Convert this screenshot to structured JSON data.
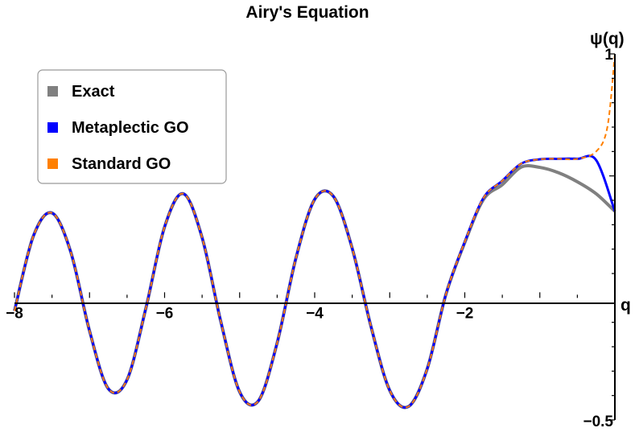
{
  "chart_data": {
    "type": "line",
    "title": "Airy's Equation",
    "xlabel": "q",
    "ylabel": "ψ(q)",
    "xlim": [
      -8,
      0
    ],
    "ylim": [
      -0.5,
      1
    ],
    "x_ticks": [
      {
        "value": -8,
        "label": "−8"
      },
      {
        "value": -6,
        "label": "−6"
      },
      {
        "value": -4,
        "label": "−4"
      },
      {
        "value": -2,
        "label": "−2"
      }
    ],
    "y_ticks": [
      {
        "value": -0.5,
        "label": "−0.5"
      },
      {
        "value": 1,
        "label": "1"
      }
    ],
    "legend_position": "top-left",
    "grid": false,
    "series": [
      {
        "name": "Exact",
        "color": "#808080",
        "style": "solid",
        "x": [
          -8,
          -7.75,
          -7.5,
          -7.25,
          -7,
          -6.75,
          -6.5,
          -6.25,
          -6,
          -5.75,
          -5.5,
          -5.25,
          -5,
          -4.75,
          -4.5,
          -4.25,
          -4,
          -3.75,
          -3.5,
          -3.25,
          -3,
          -2.75,
          -2.5,
          -2.25,
          -2,
          -1.75,
          -1.5,
          -1.25,
          -1,
          -0.75,
          -0.5,
          -0.25,
          0
        ],
        "values": [
          -0.053,
          0.252,
          0.348,
          0.188,
          -0.135,
          -0.372,
          -0.335,
          -0.043,
          0.291,
          0.427,
          0.247,
          -0.098,
          -0.385,
          -0.422,
          -0.184,
          0.163,
          0.404,
          0.416,
          0.203,
          -0.117,
          -0.379,
          -0.445,
          -0.29,
          0.016,
          0.227,
          0.404,
          0.464,
          0.536,
          0.535,
          0.513,
          0.476,
          0.427,
          0.355
        ]
      },
      {
        "name": "Metaplectic GO",
        "color": "#0000ff",
        "style": "solid",
        "x": [
          -8,
          -7.75,
          -7.5,
          -7.25,
          -7,
          -6.75,
          -6.5,
          -6.25,
          -6,
          -5.75,
          -5.5,
          -5.25,
          -5,
          -4.75,
          -4.5,
          -4.25,
          -4,
          -3.75,
          -3.5,
          -3.25,
          -3,
          -2.75,
          -2.5,
          -2.25,
          -2,
          -1.75,
          -1.5,
          -1.25,
          -1,
          -0.75,
          -0.5,
          -0.25,
          0
        ],
        "values": [
          -0.053,
          0.252,
          0.348,
          0.188,
          -0.135,
          -0.372,
          -0.335,
          -0.043,
          0.291,
          0.427,
          0.247,
          -0.098,
          -0.385,
          -0.422,
          -0.184,
          0.163,
          0.404,
          0.416,
          0.203,
          -0.117,
          -0.379,
          -0.445,
          -0.29,
          0.016,
          0.23,
          0.41,
          0.48,
          0.55,
          0.568,
          0.57,
          0.57,
          0.565,
          0.355
        ]
      },
      {
        "name": "Standard GO",
        "color": "#ff8000",
        "style": "dashed",
        "x": [
          -8,
          -7.75,
          -7.5,
          -7.25,
          -7,
          -6.75,
          -6.5,
          -6.25,
          -6,
          -5.75,
          -5.5,
          -5.25,
          -5,
          -4.75,
          -4.5,
          -4.25,
          -4,
          -3.75,
          -3.5,
          -3.25,
          -3,
          -2.75,
          -2.5,
          -2.25,
          -2,
          -1.75,
          -1.5,
          -1.25,
          -1,
          -0.75,
          -0.5,
          -0.25,
          -0.1,
          0
        ],
        "values": [
          -0.053,
          0.252,
          0.348,
          0.188,
          -0.135,
          -0.372,
          -0.335,
          -0.043,
          0.291,
          0.427,
          0.247,
          -0.098,
          -0.385,
          -0.422,
          -0.184,
          0.163,
          0.404,
          0.416,
          0.203,
          -0.117,
          -0.379,
          -0.445,
          -0.29,
          0.016,
          0.23,
          0.41,
          0.48,
          0.55,
          0.568,
          0.57,
          0.57,
          0.6,
          0.7,
          1.0
        ]
      }
    ]
  }
}
